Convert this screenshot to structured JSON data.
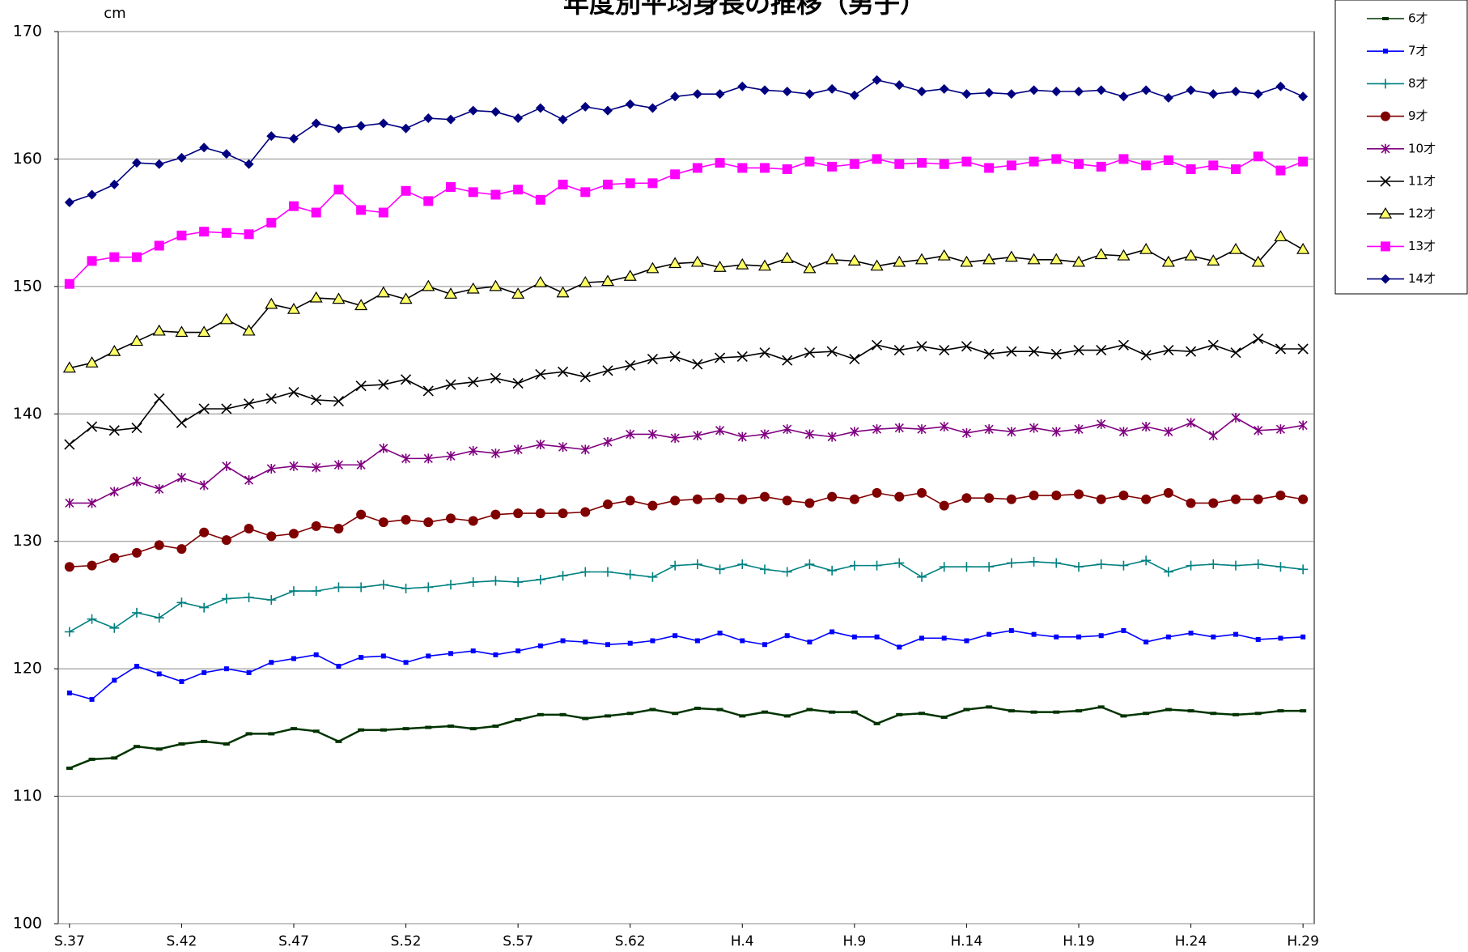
{
  "chart_data": {
    "type": "line",
    "title": "年度別平均身長の推移（男子）",
    "y_unit": "cm",
    "categories": [
      "S.37",
      null,
      null,
      null,
      null,
      "S.42",
      null,
      null,
      null,
      null,
      "S.47",
      null,
      null,
      null,
      null,
      "S.52",
      null,
      null,
      null,
      null,
      "S.57",
      null,
      null,
      null,
      null,
      "S.62",
      null,
      null,
      null,
      null,
      "H.4",
      null,
      null,
      null,
      null,
      "H.9",
      null,
      null,
      null,
      null,
      "H.14",
      null,
      null,
      null,
      null,
      "H.19",
      null,
      null,
      null,
      null,
      "H.24",
      null,
      null,
      null,
      null,
      "H.29"
    ],
    "ylim": [
      100,
      170
    ],
    "yticks": [
      100,
      110,
      120,
      130,
      140,
      150,
      160,
      170
    ],
    "grid": true,
    "legend": "right-top",
    "series": [
      {
        "name": "6才",
        "color": "#003300",
        "marker": "dash",
        "values": [
          112.2,
          112.9,
          113.0,
          113.9,
          113.7,
          114.1,
          114.3,
          114.1,
          114.9,
          114.9,
          115.3,
          115.1,
          114.3,
          115.2,
          115.2,
          115.3,
          115.4,
          115.5,
          115.3,
          115.5,
          116.0,
          116.4,
          116.4,
          116.1,
          116.3,
          116.5,
          116.8,
          116.5,
          116.9,
          116.8,
          116.3,
          116.6,
          116.3,
          116.8,
          116.6,
          116.6,
          115.7,
          116.4,
          116.5,
          116.2,
          116.8,
          117.0,
          116.7,
          116.6,
          116.6,
          116.7,
          117.0,
          116.3,
          116.5,
          116.8,
          116.7,
          116.5,
          116.4,
          116.5,
          116.7,
          116.7
        ]
      },
      {
        "name": "7才",
        "color": "#0000ff",
        "marker": "square-small",
        "values": [
          118.1,
          117.6,
          119.1,
          120.2,
          119.6,
          119.0,
          119.7,
          120.0,
          119.7,
          120.5,
          120.8,
          121.1,
          120.2,
          120.9,
          121.0,
          120.5,
          121.0,
          121.2,
          121.4,
          121.1,
          121.4,
          121.8,
          122.2,
          122.1,
          121.9,
          122.0,
          122.2,
          122.6,
          122.2,
          122.8,
          122.2,
          121.9,
          122.6,
          122.1,
          122.9,
          122.5,
          122.5,
          121.7,
          122.4,
          122.4,
          122.2,
          122.7,
          123.0,
          122.7,
          122.5,
          122.5,
          122.6,
          123.0,
          122.1,
          122.5,
          122.8,
          122.5,
          122.7,
          122.3,
          122.4,
          122.5
        ]
      },
      {
        "name": "8才",
        "color": "#008080",
        "marker": "plus",
        "values": [
          122.9,
          123.9,
          123.2,
          124.4,
          124.0,
          125.2,
          124.8,
          125.5,
          125.6,
          125.4,
          126.1,
          126.1,
          126.4,
          126.4,
          126.6,
          126.3,
          126.4,
          126.6,
          126.8,
          126.9,
          126.8,
          127.0,
          127.3,
          127.6,
          127.6,
          127.4,
          127.2,
          128.1,
          128.2,
          127.8,
          128.2,
          127.8,
          127.6,
          128.2,
          127.7,
          128.1,
          128.1,
          128.3,
          127.2,
          128.0,
          128.0,
          128.0,
          128.3,
          128.4,
          128.3,
          128.0,
          128.2,
          128.1,
          128.5,
          127.6,
          128.1,
          128.2,
          128.1,
          128.2,
          128.0,
          127.8
        ]
      },
      {
        "name": "9才",
        "color": "#800000",
        "marker": "circle",
        "values": [
          128.0,
          128.1,
          128.7,
          129.1,
          129.7,
          129.4,
          130.7,
          130.1,
          131.0,
          130.4,
          130.6,
          131.2,
          131.0,
          132.1,
          131.5,
          131.7,
          131.5,
          131.8,
          131.6,
          132.1,
          132.2,
          132.2,
          132.2,
          132.3,
          132.9,
          133.2,
          132.8,
          133.2,
          133.3,
          133.4,
          133.3,
          133.5,
          133.2,
          133.0,
          133.5,
          133.3,
          133.8,
          133.5,
          133.8,
          132.8,
          133.4,
          133.4,
          133.3,
          133.6,
          133.6,
          133.7,
          133.3,
          133.6,
          133.3,
          133.8,
          133.0,
          133.0,
          133.3,
          133.3,
          133.6,
          133.3
        ]
      },
      {
        "name": "10才",
        "color": "#800080",
        "marker": "star",
        "values": [
          133.0,
          133.0,
          133.9,
          134.7,
          134.1,
          135.0,
          134.4,
          135.9,
          134.8,
          135.7,
          135.9,
          135.8,
          136.0,
          136.0,
          137.3,
          136.5,
          136.5,
          136.7,
          137.1,
          136.9,
          137.2,
          137.6,
          137.4,
          137.2,
          137.8,
          138.4,
          138.4,
          138.1,
          138.3,
          138.7,
          138.2,
          138.4,
          138.8,
          138.4,
          138.2,
          138.6,
          138.8,
          138.9,
          138.8,
          139.0,
          138.5,
          138.8,
          138.6,
          138.9,
          138.6,
          138.8,
          139.2,
          138.6,
          139.0,
          138.6,
          139.3,
          138.3,
          139.7,
          138.7,
          138.8,
          139.1
        ]
      },
      {
        "name": "11才",
        "color": "#000000",
        "marker": "x",
        "values": [
          137.6,
          139.0,
          138.7,
          138.9,
          141.2,
          139.3,
          140.4,
          140.4,
          140.8,
          141.2,
          141.7,
          141.1,
          141.0,
          142.2,
          142.3,
          142.7,
          141.8,
          142.3,
          142.5,
          142.8,
          142.4,
          143.1,
          143.3,
          142.9,
          143.4,
          143.8,
          144.3,
          144.5,
          143.9,
          144.4,
          144.5,
          144.8,
          144.2,
          144.8,
          144.9,
          144.3,
          145.4,
          145.0,
          145.3,
          145.0,
          145.3,
          144.7,
          144.9,
          144.9,
          144.7,
          145.0,
          145.0,
          145.4,
          144.6,
          145.0,
          144.9,
          145.4,
          144.8,
          145.9,
          145.1,
          145.1
        ]
      },
      {
        "name": "12才",
        "color": "#000000",
        "marker": "triangle",
        "marker_fill": "#ffff66",
        "values": [
          143.6,
          144.0,
          144.9,
          145.7,
          146.5,
          146.4,
          146.4,
          147.4,
          146.5,
          148.6,
          148.2,
          149.1,
          149.0,
          148.5,
          149.5,
          149.0,
          150.0,
          149.4,
          149.8,
          150.0,
          149.4,
          150.3,
          149.5,
          150.3,
          150.4,
          150.8,
          151.4,
          151.8,
          151.9,
          151.5,
          151.7,
          151.6,
          152.2,
          151.4,
          152.1,
          152.0,
          151.6,
          151.9,
          152.1,
          152.4,
          151.9,
          152.1,
          152.3,
          152.1,
          152.1,
          151.9,
          152.5,
          152.4,
          152.9,
          151.9,
          152.4,
          152.0,
          152.9,
          151.9,
          153.9,
          152.9
        ]
      },
      {
        "name": "13才",
        "color": "#ff00ff",
        "marker": "square",
        "values": [
          150.2,
          152.0,
          152.3,
          152.3,
          153.2,
          154.0,
          154.3,
          154.2,
          154.1,
          155.0,
          156.3,
          155.8,
          157.6,
          156.0,
          155.8,
          157.5,
          156.7,
          157.8,
          157.4,
          157.2,
          157.6,
          156.8,
          158.0,
          157.4,
          158.0,
          158.1,
          158.1,
          158.8,
          159.3,
          159.7,
          159.3,
          159.3,
          159.2,
          159.8,
          159.4,
          159.6,
          160.0,
          159.6,
          159.7,
          159.6,
          159.8,
          159.3,
          159.5,
          159.8,
          160.0,
          159.6,
          159.4,
          160.0,
          159.5,
          159.9,
          159.2,
          159.5,
          159.2,
          160.2,
          159.1,
          159.8
        ]
      },
      {
        "name": "14才",
        "color": "#000080",
        "marker": "diamond",
        "values": [
          156.6,
          157.2,
          158.0,
          159.7,
          159.6,
          160.1,
          160.9,
          160.4,
          159.6,
          161.8,
          161.6,
          162.8,
          162.4,
          162.6,
          162.8,
          162.4,
          163.2,
          163.1,
          163.8,
          163.7,
          163.2,
          164.0,
          163.1,
          164.1,
          163.8,
          164.3,
          164.0,
          164.9,
          165.1,
          165.1,
          165.7,
          165.4,
          165.3,
          165.1,
          165.5,
          165.0,
          166.2,
          165.8,
          165.3,
          165.5,
          165.1,
          165.2,
          165.1,
          165.4,
          165.3,
          165.3,
          165.4,
          164.9,
          165.4,
          164.8,
          165.4,
          165.1,
          165.3,
          165.1,
          165.7,
          164.9
        ]
      }
    ]
  }
}
